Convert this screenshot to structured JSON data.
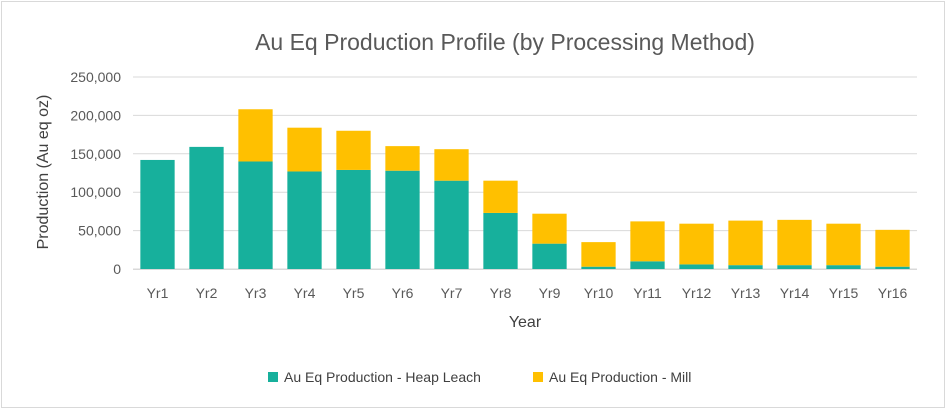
{
  "chart_data": {
    "type": "bar",
    "stacked": true,
    "title": "Au Eq Production Profile (by Processing Method)",
    "xlabel": "Year",
    "ylabel": "Production (Au eq oz)",
    "ylim": [
      0,
      250000
    ],
    "yticks": [
      0,
      50000,
      100000,
      150000,
      200000,
      250000
    ],
    "ytick_labels": [
      "0",
      "50,000",
      "100,000",
      "150,000",
      "200,000",
      "250,000"
    ],
    "grid": true,
    "legend_position": "bottom",
    "categories": [
      "Yr1",
      "Yr2",
      "Yr3",
      "Yr4",
      "Yr5",
      "Yr6",
      "Yr7",
      "Yr8",
      "Yr9",
      "Yr10",
      "Yr11",
      "Yr12",
      "Yr13",
      "Yr14",
      "Yr15",
      "Yr16"
    ],
    "series": [
      {
        "name": "Au Eq Production - Heap Leach",
        "color": "#17b09c",
        "values": [
          142000,
          159000,
          140000,
          127000,
          129000,
          128000,
          115000,
          73000,
          33000,
          3000,
          10000,
          6000,
          5000,
          5000,
          5000,
          3000
        ]
      },
      {
        "name": "Au Eq Production - Mill",
        "color": "#ffc000",
        "values": [
          0,
          0,
          68000,
          57000,
          51000,
          32000,
          41000,
          42000,
          39000,
          32000,
          52000,
          53000,
          58000,
          59000,
          54000,
          48000
        ]
      }
    ]
  }
}
